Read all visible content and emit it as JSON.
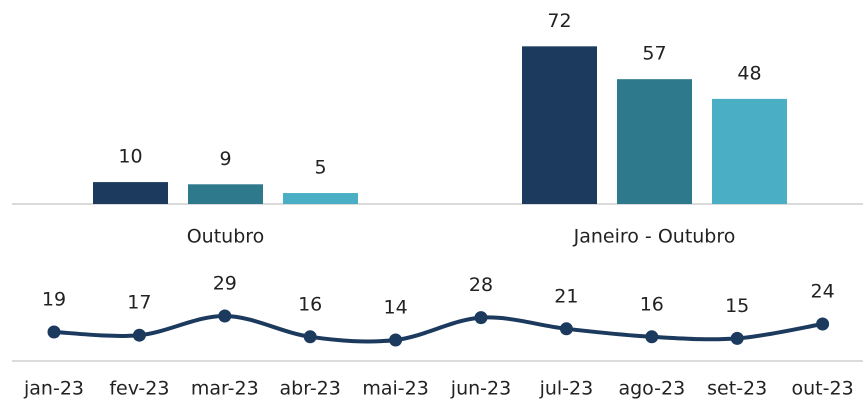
{
  "chart_data": [
    {
      "type": "bar",
      "categories": [
        "Outubro",
        "Janeiro - Outubro"
      ],
      "series": [
        {
          "color": "#1b3a5e",
          "values": [
            10,
            72
          ]
        },
        {
          "color": "#2e7a8c",
          "values": [
            9,
            57
          ]
        },
        {
          "color": "#4aaec4",
          "values": [
            5,
            48
          ]
        }
      ]
    },
    {
      "type": "line",
      "categories": [
        "jan-23",
        "fev-23",
        "mar-23",
        "abr-23",
        "mai-23",
        "jun-23",
        "jul-23",
        "ago-23",
        "set-23",
        "out-23"
      ],
      "values": [
        19,
        17,
        29,
        16,
        14,
        28,
        21,
        16,
        15,
        24
      ],
      "color": "#1b3a5e"
    }
  ]
}
